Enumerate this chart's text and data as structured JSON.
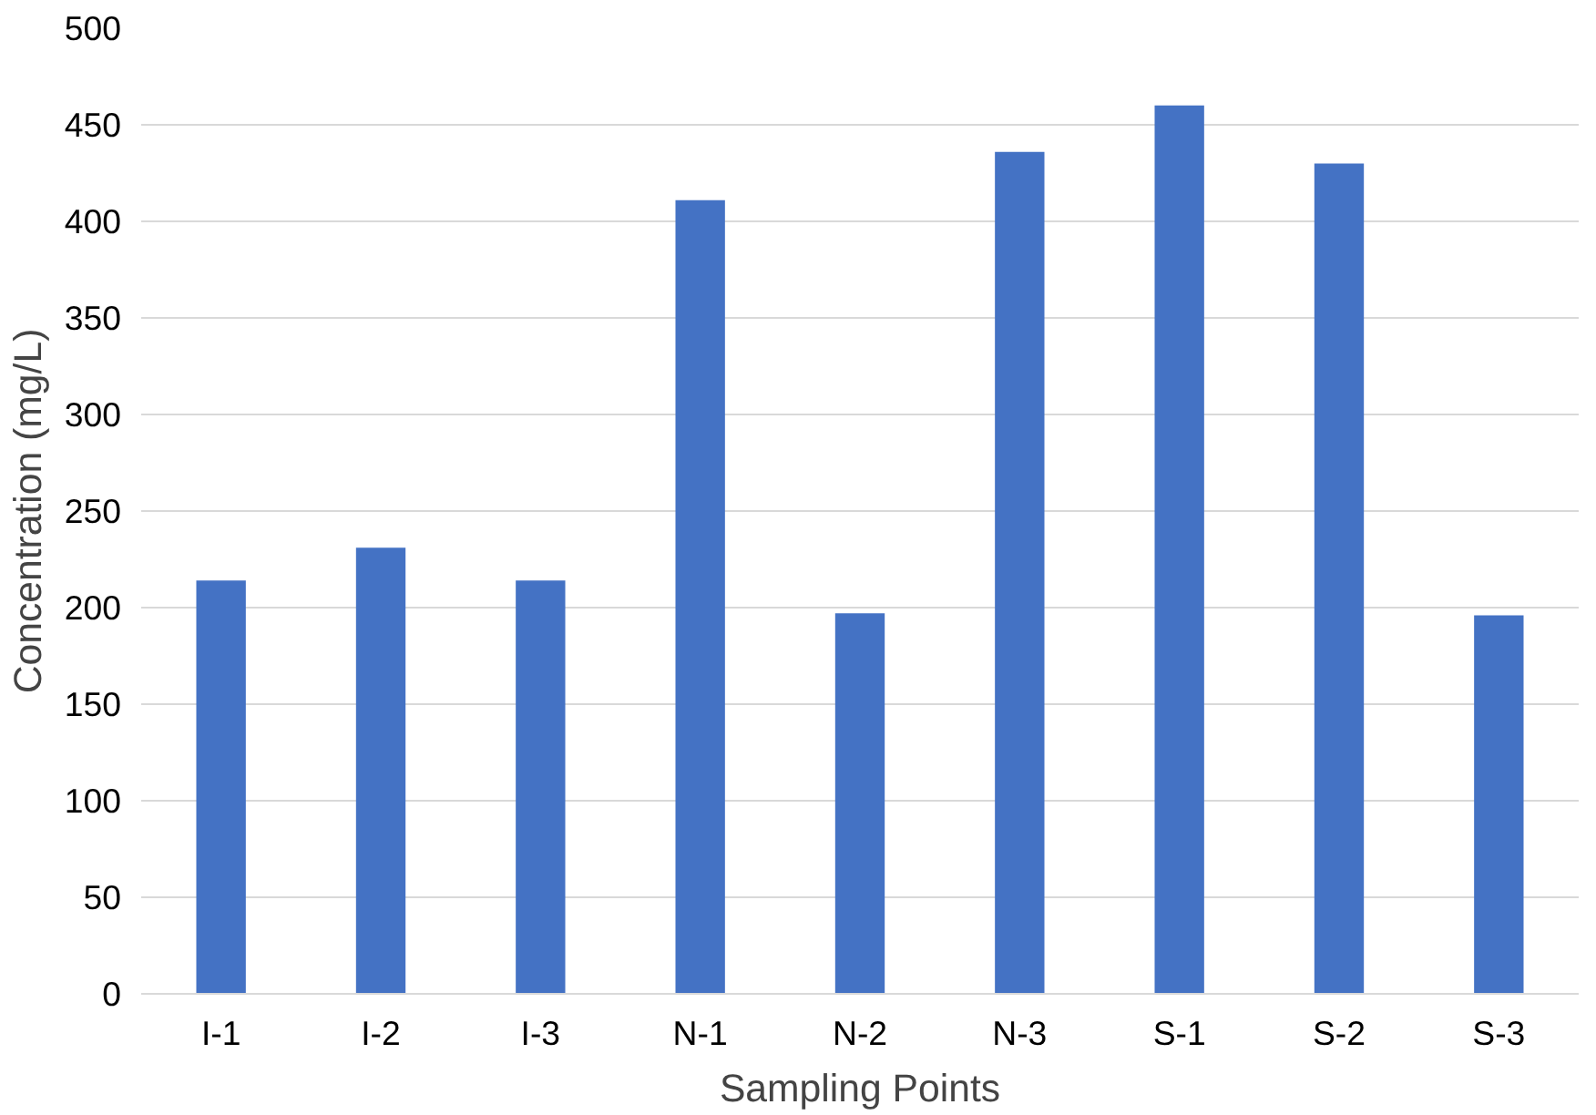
{
  "chart_data": {
    "type": "bar",
    "xlabel": "Sampling Points",
    "ylabel": "Concentration (mg/L)",
    "categories": [
      "I-1",
      "I-2",
      "I-3",
      "N-1",
      "N-2",
      "N-3",
      "S-1",
      "S-2",
      "S-3"
    ],
    "values": [
      214,
      231,
      214,
      411,
      197,
      436,
      460,
      430,
      196
    ],
    "color": "#4472c4",
    "ylim": [
      0,
      500
    ],
    "yticks": [
      0,
      50,
      100,
      150,
      200,
      250,
      300,
      350,
      400,
      450,
      500
    ],
    "grid": "y"
  }
}
